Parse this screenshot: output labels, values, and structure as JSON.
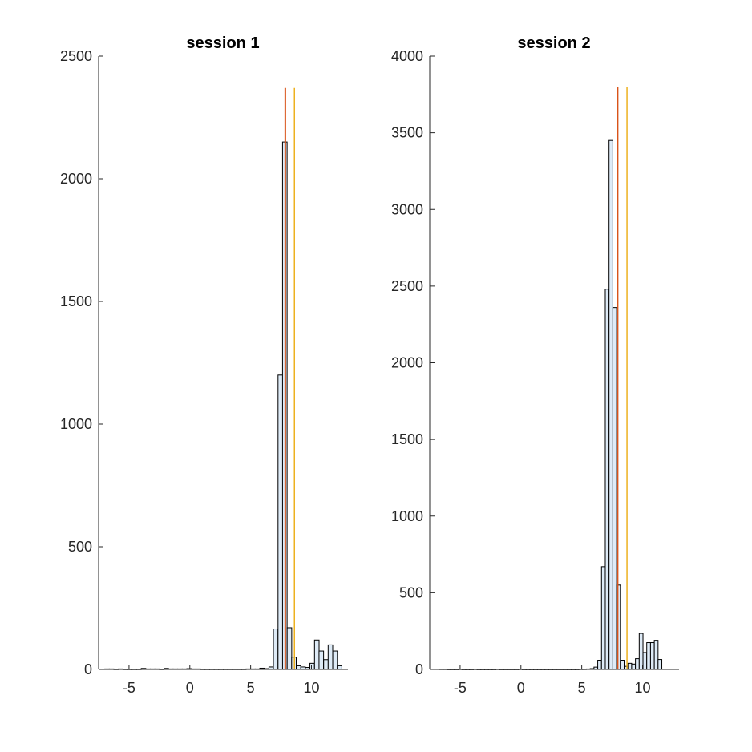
{
  "colors": {
    "bar_fill": "#deebf7",
    "bar_edge": "#000000",
    "axis": "#262626",
    "red_line": "#d95319",
    "yellow_line": "#edb120"
  },
  "chart_data": [
    {
      "type": "bar",
      "title": "session 1",
      "xlabel": "",
      "ylabel": "",
      "xlim": [
        -7.5,
        13
      ],
      "ylim": [
        0,
        2500
      ],
      "xticks": [
        -5,
        0,
        5,
        10
      ],
      "xtick_labels": [
        "-5",
        "0",
        "5",
        "10"
      ],
      "yticks": [
        0,
        500,
        1000,
        1500,
        2000,
        2500
      ],
      "ytick_labels": [
        "0",
        "500",
        "1000",
        "1500",
        "2000",
        "2500"
      ],
      "bin_width": 0.375,
      "bins": [
        {
          "x": -6.81,
          "y": 2
        },
        {
          "x": -6.44,
          "y": 2
        },
        {
          "x": -6.06,
          "y": 1
        },
        {
          "x": -5.69,
          "y": 2
        },
        {
          "x": -5.31,
          "y": 1
        },
        {
          "x": -4.94,
          "y": 1
        },
        {
          "x": -4.56,
          "y": 1
        },
        {
          "x": -4.19,
          "y": 1
        },
        {
          "x": -3.81,
          "y": 4
        },
        {
          "x": -3.44,
          "y": 2
        },
        {
          "x": -3.06,
          "y": 2
        },
        {
          "x": -2.69,
          "y": 2
        },
        {
          "x": -2.31,
          "y": 1
        },
        {
          "x": -1.94,
          "y": 4
        },
        {
          "x": -1.56,
          "y": 2
        },
        {
          "x": -1.19,
          "y": 2
        },
        {
          "x": -0.81,
          "y": 2
        },
        {
          "x": -0.44,
          "y": 2
        },
        {
          "x": -0.06,
          "y": 3
        },
        {
          "x": 0.31,
          "y": 2
        },
        {
          "x": 0.69,
          "y": 2
        },
        {
          "x": 1.06,
          "y": 1
        },
        {
          "x": 1.44,
          "y": 1
        },
        {
          "x": 1.81,
          "y": 1
        },
        {
          "x": 2.19,
          "y": 1
        },
        {
          "x": 2.56,
          "y": 1
        },
        {
          "x": 2.94,
          "y": 1
        },
        {
          "x": 3.31,
          "y": 1
        },
        {
          "x": 3.69,
          "y": 1
        },
        {
          "x": 4.06,
          "y": 1
        },
        {
          "x": 4.44,
          "y": 1
        },
        {
          "x": 4.81,
          "y": 2
        },
        {
          "x": 5.19,
          "y": 2
        },
        {
          "x": 5.56,
          "y": 2
        },
        {
          "x": 5.94,
          "y": 5
        },
        {
          "x": 6.31,
          "y": 3
        },
        {
          "x": 6.69,
          "y": 10
        },
        {
          "x": 7.06,
          "y": 165
        },
        {
          "x": 7.44,
          "y": 1200
        },
        {
          "x": 7.81,
          "y": 2150
        },
        {
          "x": 8.19,
          "y": 170
        },
        {
          "x": 8.56,
          "y": 50
        },
        {
          "x": 8.94,
          "y": 15
        },
        {
          "x": 9.31,
          "y": 10
        },
        {
          "x": 9.69,
          "y": 8
        },
        {
          "x": 10.06,
          "y": 25
        },
        {
          "x": 10.44,
          "y": 120
        },
        {
          "x": 10.81,
          "y": 75
        },
        {
          "x": 11.19,
          "y": 40
        },
        {
          "x": 11.56,
          "y": 100
        },
        {
          "x": 11.94,
          "y": 75
        },
        {
          "x": 12.31,
          "y": 15
        }
      ],
      "vlines": [
        {
          "x": 7.85,
          "color": "red_line",
          "y_top": 2370
        },
        {
          "x": 8.6,
          "color": "yellow_line",
          "y_top": 2370
        }
      ],
      "grid": false,
      "legend": "none"
    },
    {
      "type": "bar",
      "title": "session 2",
      "xlabel": "",
      "ylabel": "",
      "xlim": [
        -7.5,
        13
      ],
      "ylim": [
        0,
        4000
      ],
      "xticks": [
        -5,
        0,
        5,
        10
      ],
      "xtick_labels": [
        "-5",
        "0",
        "5",
        "10"
      ],
      "yticks": [
        0,
        500,
        1000,
        1500,
        2000,
        2500,
        3000,
        3500,
        4000
      ],
      "ytick_labels": [
        "0",
        "500",
        "1000",
        "1500",
        "2000",
        "2500",
        "3000",
        "3500",
        "4000"
      ],
      "bin_width": 0.31,
      "bins": [
        {
          "x": -6.55,
          "y": 2
        },
        {
          "x": -6.24,
          "y": 2
        },
        {
          "x": -5.93,
          "y": 1
        },
        {
          "x": -5.62,
          "y": 1
        },
        {
          "x": -5.31,
          "y": 1
        },
        {
          "x": -5.0,
          "y": 2
        },
        {
          "x": -4.69,
          "y": 1
        },
        {
          "x": -4.38,
          "y": 1
        },
        {
          "x": -4.07,
          "y": 1
        },
        {
          "x": -3.76,
          "y": 2
        },
        {
          "x": -3.45,
          "y": 1
        },
        {
          "x": -3.14,
          "y": 1
        },
        {
          "x": -2.83,
          "y": 1
        },
        {
          "x": -2.52,
          "y": 1
        },
        {
          "x": -2.21,
          "y": 1
        },
        {
          "x": -1.9,
          "y": 2
        },
        {
          "x": -1.59,
          "y": 1
        },
        {
          "x": -1.28,
          "y": 1
        },
        {
          "x": -0.97,
          "y": 1
        },
        {
          "x": -0.66,
          "y": 1
        },
        {
          "x": -0.35,
          "y": 1
        },
        {
          "x": -0.04,
          "y": 2
        },
        {
          "x": 0.27,
          "y": 1
        },
        {
          "x": 0.58,
          "y": 1
        },
        {
          "x": 0.89,
          "y": 1
        },
        {
          "x": 1.2,
          "y": 1
        },
        {
          "x": 1.51,
          "y": 1
        },
        {
          "x": 1.82,
          "y": 1
        },
        {
          "x": 2.13,
          "y": 1
        },
        {
          "x": 2.44,
          "y": 1
        },
        {
          "x": 2.75,
          "y": 1
        },
        {
          "x": 3.06,
          "y": 1
        },
        {
          "x": 3.37,
          "y": 1
        },
        {
          "x": 3.68,
          "y": 1
        },
        {
          "x": 3.99,
          "y": 1
        },
        {
          "x": 4.3,
          "y": 1
        },
        {
          "x": 4.61,
          "y": 1
        },
        {
          "x": 4.92,
          "y": 2
        },
        {
          "x": 5.23,
          "y": 2
        },
        {
          "x": 5.54,
          "y": 3
        },
        {
          "x": 5.85,
          "y": 5
        },
        {
          "x": 6.16,
          "y": 15
        },
        {
          "x": 6.47,
          "y": 60
        },
        {
          "x": 6.78,
          "y": 670
        },
        {
          "x": 7.09,
          "y": 2480
        },
        {
          "x": 7.4,
          "y": 3450
        },
        {
          "x": 7.71,
          "y": 2360
        },
        {
          "x": 8.02,
          "y": 550
        },
        {
          "x": 8.33,
          "y": 60
        },
        {
          "x": 8.64,
          "y": 20
        },
        {
          "x": 8.95,
          "y": 40
        },
        {
          "x": 9.26,
          "y": 35
        },
        {
          "x": 9.57,
          "y": 70
        },
        {
          "x": 9.88,
          "y": 235
        },
        {
          "x": 10.19,
          "y": 110
        },
        {
          "x": 10.5,
          "y": 175
        },
        {
          "x": 10.81,
          "y": 175
        },
        {
          "x": 11.12,
          "y": 190
        },
        {
          "x": 11.43,
          "y": 65
        }
      ],
      "vlines": [
        {
          "x": 7.95,
          "color": "red_line",
          "y_top": 3800
        },
        {
          "x": 8.72,
          "color": "yellow_line",
          "y_top": 3800
        }
      ],
      "grid": false,
      "legend": "none"
    }
  ]
}
